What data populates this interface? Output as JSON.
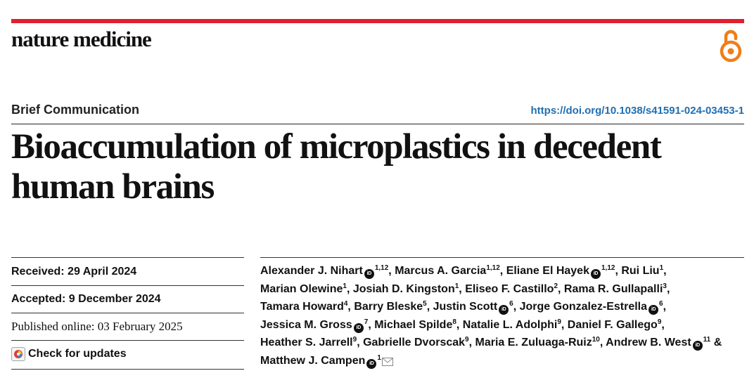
{
  "journal": "nature medicine",
  "article_type": "Brief Communication",
  "doi": "https://doi.org/10.1038/s41591-024-03453-1",
  "title": "Bioaccumulation of microplastics in decedent human brains",
  "dates": {
    "received": "Received: 29 April 2024",
    "accepted": "Accepted: 9 December 2024",
    "published": "Published online: 03 February 2025"
  },
  "check_updates": "Check for updates",
  "orcid_label": "iD",
  "authors": [
    {
      "name": "Alexander J. Nihart",
      "orcid": true,
      "aff": "1,12"
    },
    {
      "name": "Marcus A. Garcia",
      "orcid": false,
      "aff": "1,12"
    },
    {
      "name": "Eliane El Hayek",
      "orcid": true,
      "aff": "1,12"
    },
    {
      "name": "Rui Liu",
      "orcid": false,
      "aff": "1"
    },
    {
      "name": "Marian Olewine",
      "orcid": false,
      "aff": "1"
    },
    {
      "name": "Josiah D. Kingston",
      "orcid": false,
      "aff": "1"
    },
    {
      "name": "Eliseo F. Castillo",
      "orcid": false,
      "aff": "2"
    },
    {
      "name": "Rama R. Gullapalli",
      "orcid": false,
      "aff": "3"
    },
    {
      "name": "Tamara Howard",
      "orcid": false,
      "aff": "4"
    },
    {
      "name": "Barry Bleske",
      "orcid": false,
      "aff": "5"
    },
    {
      "name": "Justin Scott",
      "orcid": true,
      "aff": "6"
    },
    {
      "name": "Jorge Gonzalez-Estrella",
      "orcid": true,
      "aff": "6"
    },
    {
      "name": "Jessica M. Gross",
      "orcid": true,
      "aff": "7"
    },
    {
      "name": "Michael Spilde",
      "orcid": false,
      "aff": "8"
    },
    {
      "name": "Natalie L. Adolphi",
      "orcid": false,
      "aff": "9"
    },
    {
      "name": "Daniel F. Gallego",
      "orcid": false,
      "aff": "9"
    },
    {
      "name": "Heather S. Jarrell",
      "orcid": false,
      "aff": "9"
    },
    {
      "name": "Gabrielle Dvorscak",
      "orcid": false,
      "aff": "9"
    },
    {
      "name": "Maria E. Zuluaga-Ruiz",
      "orcid": false,
      "aff": "10"
    },
    {
      "name": "Andrew B. West",
      "orcid": true,
      "aff": "11"
    },
    {
      "name": "Matthew J. Campen",
      "orcid": true,
      "aff": "1",
      "corresponding": true
    }
  ],
  "colors": {
    "accent_bar": "#e0202f",
    "oa_orange": "#f07d1a",
    "doi_link": "#1f6fb2"
  },
  "icons": {
    "open_access": "open-access-lock-icon",
    "orcid": "orcid-icon",
    "mail": "envelope-icon",
    "updates": "check-updates-icon"
  }
}
